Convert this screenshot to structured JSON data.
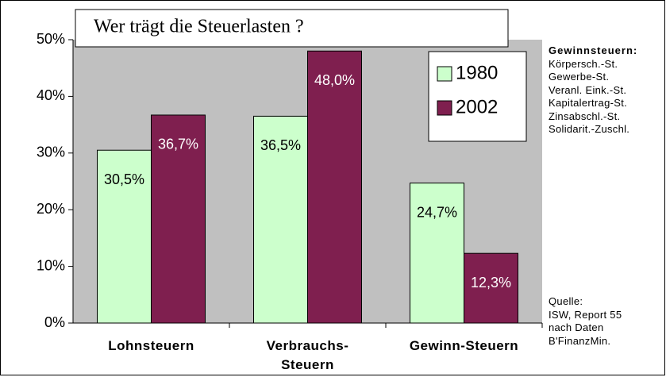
{
  "chart_data": {
    "type": "bar",
    "title": "Wer trägt die Steuerlasten ?",
    "categories": [
      "Lohnsteuern",
      "Verbrauchs-\nSteuern",
      "Gewinn-Steuern"
    ],
    "series": [
      {
        "name": "1980",
        "color": "#ccffcc",
        "values": [
          30.5,
          36.5,
          24.7
        ],
        "value_labels": [
          "30,5%",
          "36,5%",
          "24,7%"
        ]
      },
      {
        "name": "2002",
        "color": "#7f1f4f",
        "values": [
          36.7,
          48.0,
          12.3
        ],
        "value_labels": [
          "36,7%",
          "48,0%",
          "12,3%"
        ]
      }
    ],
    "ylim": [
      0,
      50
    ],
    "yticks": [
      {
        "value": 0,
        "label": "0%"
      },
      {
        "value": 10,
        "label": "10%"
      },
      {
        "value": 20,
        "label": "20%"
      },
      {
        "value": 30,
        "label": "30%"
      },
      {
        "value": 40,
        "label": "40%"
      },
      {
        "value": 50,
        "label": "50%"
      }
    ],
    "grid": false,
    "legend": "upper right"
  },
  "side_note": {
    "title": "Gewinnsteuern:",
    "items": [
      "Körpersch.-St.",
      "Gewerbe-St.",
      "Veranl. Eink.-St.",
      "Kapitalertrag-St.",
      "Zinsabschl.-St.",
      "Solidarit.-Zuschl."
    ]
  },
  "source": [
    "Quelle:",
    "ISW, Report 55",
    "nach Daten",
    "B'FinanzMin."
  ]
}
